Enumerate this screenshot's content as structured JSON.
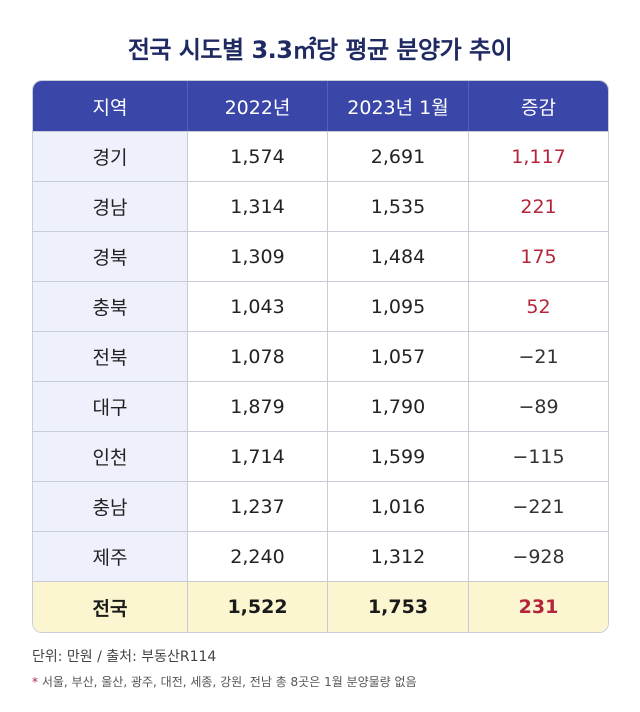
{
  "title": "전국 시도별 3.3㎡당 평균 분양가 추이",
  "headers": [
    "지역",
    "2022년",
    "2023년 1월",
    "증감"
  ],
  "rows": [
    {
      "region": "경기",
      "y2022": "1,574",
      "y2023": "2,691",
      "change": "1,117"
    },
    {
      "region": "경남",
      "y2022": "1,314",
      "y2023": "1,535",
      "change": "221"
    },
    {
      "region": "경북",
      "y2022": "1,309",
      "y2023": "1,484",
      "change": "175"
    },
    {
      "region": "충북",
      "y2022": "1,043",
      "y2023": "1,095",
      "change": "52"
    },
    {
      "region": "전북",
      "y2022": "1,078",
      "y2023": "1,057",
      "change": "−21"
    },
    {
      "region": "대구",
      "y2022": "1,879",
      "y2023": "1,790",
      "change": "−89"
    },
    {
      "region": "인천",
      "y2022": "1,714",
      "y2023": "1,599",
      "change": "−115"
    },
    {
      "region": "충남",
      "y2022": "1,237",
      "y2023": "1,016",
      "change": "−221"
    },
    {
      "region": "제주",
      "y2022": "2,240",
      "y2023": "1,312",
      "change": "−928"
    }
  ],
  "total": {
    "region": "전국",
    "y2022": "1,522",
    "y2023": "1,753",
    "change": "231"
  },
  "unit_note": "단위: 만원 / 출처: 부동산R114",
  "footnote_mark": "*",
  "footnote": "서울, 부산, 울산, 광주, 대전, 세종, 강원, 전남 총 8곳은 1월 분양물량 없음",
  "colors": {
    "header_bg": "#3a47a8",
    "increase": "#b5243a",
    "total_bg": "#fbf6cf",
    "region_bg": "#eef0fb"
  }
}
